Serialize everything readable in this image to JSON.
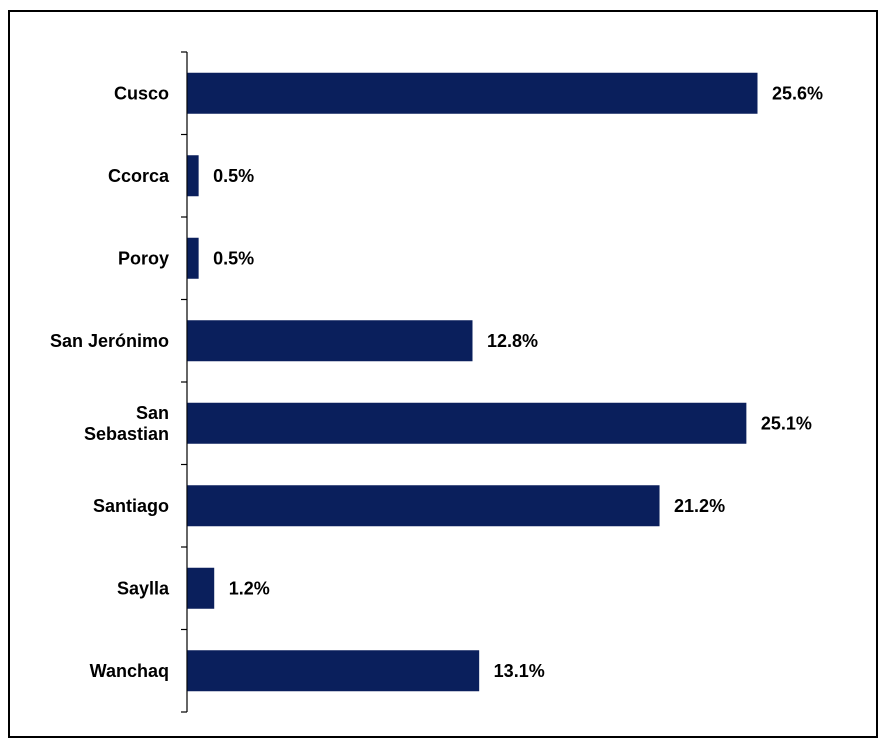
{
  "chart_data": {
    "type": "bar",
    "orientation": "horizontal",
    "categories": [
      "Cusco",
      "Ccorca",
      "Poroy",
      "San Jerónimo",
      "San Sebastian",
      "Santiago",
      "Saylla",
      "Wanchaq"
    ],
    "category_display": [
      [
        "Cusco"
      ],
      [
        "Ccorca"
      ],
      [
        "Poroy"
      ],
      [
        "San Jerónimo"
      ],
      [
        "San",
        "Sebastian"
      ],
      [
        "Santiago"
      ],
      [
        "Saylla"
      ],
      [
        "Wanchaq"
      ]
    ],
    "values": [
      25.6,
      0.5,
      0.5,
      12.8,
      25.1,
      21.2,
      1.2,
      13.1
    ],
    "value_labels": [
      "25.6%",
      "0.5%",
      "0.5%",
      "12.8%",
      "25.1%",
      "21.2%",
      "1.2%",
      "13.1%"
    ],
    "title": "",
    "xlabel": "",
    "ylabel": "",
    "xlim": [
      0,
      28
    ],
    "grid": false,
    "legend": "none",
    "bar_color": "#0a1f5c"
  }
}
